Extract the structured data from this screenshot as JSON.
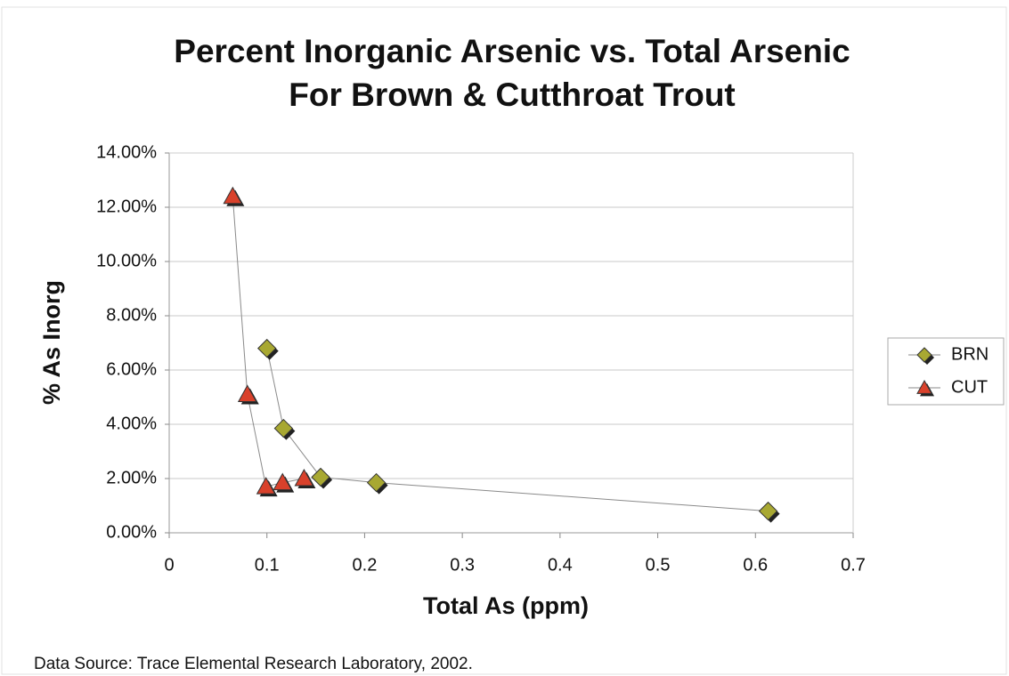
{
  "chart_data": {
    "type": "scatter",
    "title": "Percent Inorganic Arsenic vs. Total Arsenic",
    "subtitle": "For Brown & Cutthroat Trout",
    "x_label": "Total As (ppm)",
    "y_label": "% As Inorg",
    "source": "Data Source: Trace Elemental Research Laboratory, 2002.",
    "xlim": [
      0,
      0.7
    ],
    "xticks": [
      0,
      0.1,
      0.2,
      0.3,
      0.4,
      0.5,
      0.6,
      0.7
    ],
    "ylim": [
      0,
      14
    ],
    "yticks": [
      {
        "value": 0,
        "label": "0.00%"
      },
      {
        "value": 2,
        "label": "2.00%"
      },
      {
        "value": 4,
        "label": "4.00%"
      },
      {
        "value": 6,
        "label": "6.00%"
      },
      {
        "value": 8,
        "label": "8.00%"
      },
      {
        "value": 10,
        "label": "10.00%"
      },
      {
        "value": 12,
        "label": "12.00%"
      },
      {
        "value": 14,
        "label": "14.00%"
      }
    ],
    "grid": true,
    "legend": "right",
    "line_color": "#8a8a8a",
    "series": [
      {
        "name": "BRN",
        "marker": "diamond",
        "color": "#a8a832",
        "x": [
          0.1,
          0.117,
          0.155,
          0.212,
          0.613
        ],
        "values": [
          6.8,
          3.85,
          2.05,
          1.85,
          0.8
        ]
      },
      {
        "name": "CUT",
        "marker": "triangle",
        "color": "#d9412b",
        "x": [
          0.065,
          0.08,
          0.099,
          0.116,
          0.138
        ],
        "values": [
          12.4,
          5.1,
          1.7,
          1.85,
          2.0
        ]
      }
    ]
  }
}
